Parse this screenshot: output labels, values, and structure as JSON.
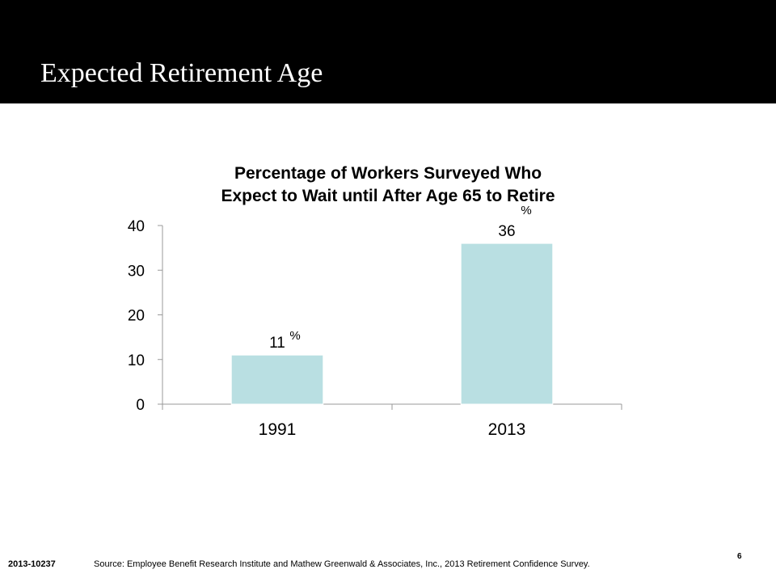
{
  "slide": {
    "title": "Expected Retirement Age",
    "document_id": "2013-10237",
    "source": "Source: Employee Benefit Research Institute and Mathew Greenwald & Associates, Inc., 2013 Retirement Confidence Survey.",
    "page_number": "6"
  },
  "chart_data": {
    "type": "bar",
    "title_lines": [
      "Percentage of Workers Surveyed Who",
      "Expect to Wait until After Age 65 to Retire"
    ],
    "categories": [
      "1991",
      "2013"
    ],
    "values": [
      11,
      36
    ],
    "value_labels": [
      "11",
      "36"
    ],
    "value_suffix": "%",
    "ylim": [
      0,
      40
    ],
    "yticks": [
      0,
      10,
      20,
      30,
      40
    ],
    "grid": false,
    "bar_color": "#b9dfe2"
  }
}
